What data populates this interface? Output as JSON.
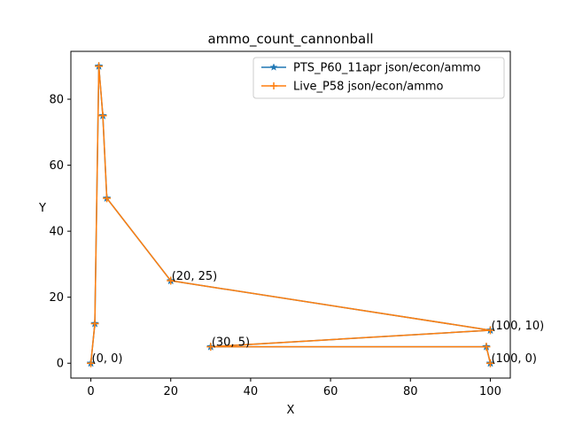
{
  "chart_data": {
    "type": "line",
    "title": "ammo_count_cannonball",
    "xlabel": "X",
    "ylabel": "Y",
    "xlim": [
      -5,
      105
    ],
    "ylim": [
      -4.5,
      94.5
    ],
    "xticks": [
      0,
      20,
      40,
      60,
      80,
      100
    ],
    "yticks": [
      0,
      20,
      40,
      60,
      80
    ],
    "grid": false,
    "legend_position": "top-right",
    "series": [
      {
        "name": "PTS_P60_11apr json/econ/ammo",
        "color": "#1f77b4",
        "marker": "star",
        "points": [
          [
            0,
            0
          ],
          [
            1,
            12
          ],
          [
            2,
            90
          ],
          [
            3,
            75
          ],
          [
            4,
            50
          ],
          [
            20,
            25
          ],
          [
            100,
            10
          ],
          [
            30,
            5
          ],
          [
            99,
            5
          ],
          [
            100,
            0
          ]
        ]
      },
      {
        "name": "Live_P58 json/econ/ammo",
        "color": "#ff7f0e",
        "marker": "plus",
        "points": [
          [
            0,
            0
          ],
          [
            1,
            12
          ],
          [
            2,
            90
          ],
          [
            3,
            75
          ],
          [
            4,
            50
          ],
          [
            20,
            25
          ],
          [
            100,
            10
          ],
          [
            30,
            5
          ],
          [
            99,
            5
          ],
          [
            100,
            0
          ]
        ]
      }
    ],
    "annotations": [
      {
        "text": "(0, 0)",
        "x": 0,
        "y": 0
      },
      {
        "text": "(20, 25)",
        "x": 20,
        "y": 25
      },
      {
        "text": "(100, 10)",
        "x": 100,
        "y": 10
      },
      {
        "text": "(30, 5)",
        "x": 30,
        "y": 5
      },
      {
        "text": "(100, 0)",
        "x": 100,
        "y": 0
      }
    ]
  }
}
